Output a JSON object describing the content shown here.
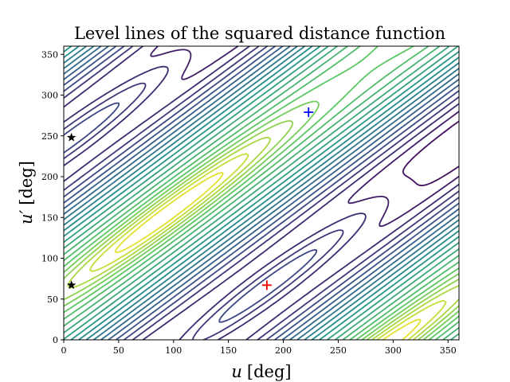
{
  "chart_data": {
    "type": "contour",
    "title": "Level lines of the squared distance function",
    "xlabel": {
      "symbol": "u",
      "unit": "[deg]"
    },
    "ylabel": {
      "symbol": "u′",
      "unit": "[deg]"
    },
    "xlim": [
      0,
      360
    ],
    "ylim": [
      0,
      360
    ],
    "xticks": [
      "0",
      "50",
      "100",
      "150",
      "200",
      "250",
      "300",
      "350"
    ],
    "yticks": [
      "0",
      "50",
      "100",
      "150",
      "200",
      "250",
      "300",
      "350"
    ],
    "colormap": [
      "#440154",
      "#3b528b",
      "#21918c",
      "#5ec962",
      "#fde725"
    ],
    "markers": [
      {
        "name": "red-plus-marker",
        "shape": "plus",
        "color": "#ff0000",
        "x": 185,
        "y": 67
      },
      {
        "name": "blue-plus-marker",
        "shape": "plus",
        "color": "#0000ff",
        "x": 223,
        "y": 279
      },
      {
        "name": "star-marker-upper",
        "shape": "star",
        "color": "#000000",
        "x": 7,
        "y": 248
      },
      {
        "name": "star-marker-lower",
        "shape": "star",
        "color": "#000000",
        "x": 7,
        "y": 67
      }
    ]
  }
}
